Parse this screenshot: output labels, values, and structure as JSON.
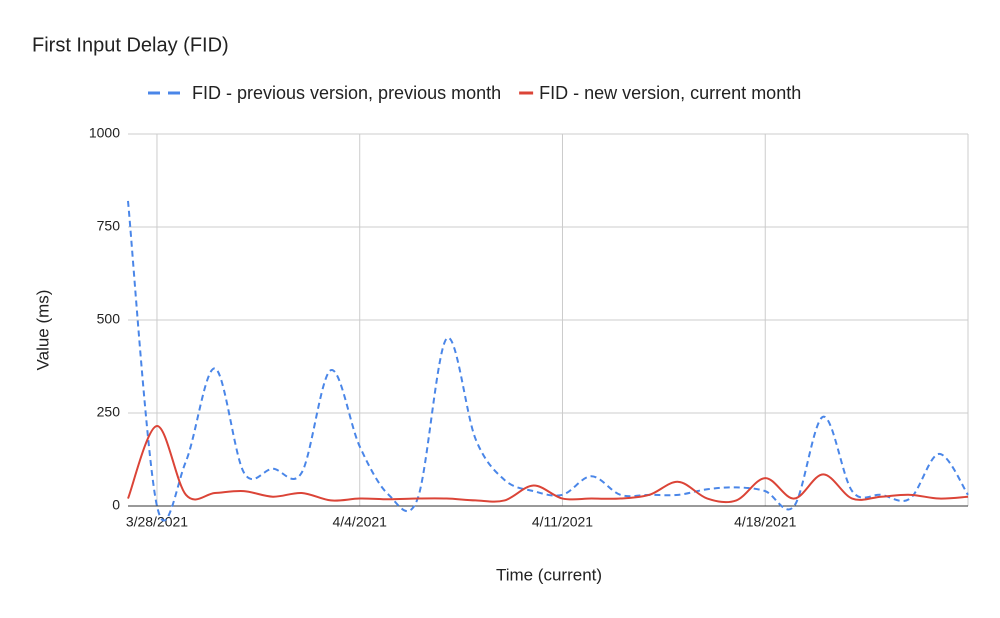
{
  "chart_data": {
    "type": "line",
    "title": "First Input Delay (FID)",
    "x_label": "Time (current)",
    "y_label": "Value (ms)",
    "x": [
      "2021-03-27",
      "2021-03-28",
      "2021-03-29",
      "2021-03-30",
      "2021-03-31",
      "2021-04-01",
      "2021-04-02",
      "2021-04-03",
      "2021-04-04",
      "2021-04-05",
      "2021-04-06",
      "2021-04-07",
      "2021-04-08",
      "2021-04-09",
      "2021-04-10",
      "2021-04-11",
      "2021-04-12",
      "2021-04-13",
      "2021-04-14",
      "2021-04-15",
      "2021-04-16",
      "2021-04-17",
      "2021-04-18",
      "2021-04-19",
      "2021-04-20",
      "2021-04-21",
      "2021-04-22",
      "2021-04-23",
      "2021-04-24",
      "2021-04-25"
    ],
    "series": [
      {
        "name": "FID - previous version, previous month",
        "color": "#4a86e8",
        "dashed": true,
        "values": [
          820,
          0,
          120,
          370,
          90,
          100,
          90,
          365,
          160,
          30,
          20,
          450,
          180,
          70,
          40,
          30,
          80,
          30,
          30,
          30,
          45,
          50,
          40,
          0,
          240,
          40,
          30,
          20,
          140,
          30
        ]
      },
      {
        "name": "FID - new version, current month",
        "color": "#db4437",
        "dashed": false,
        "values": [
          20,
          215,
          30,
          35,
          40,
          25,
          35,
          15,
          20,
          18,
          20,
          20,
          15,
          15,
          55,
          20,
          20,
          20,
          30,
          65,
          20,
          15,
          75,
          20,
          85,
          20,
          25,
          30,
          20,
          25
        ]
      }
    ],
    "xlim": [
      "2021-03-27",
      "2021-04-25"
    ],
    "xticks": [
      {
        "value": "2021-03-28",
        "label": "3/28/2021"
      },
      {
        "value": "2021-04-04",
        "label": "4/4/2021"
      },
      {
        "value": "2021-04-11",
        "label": "4/11/2021"
      },
      {
        "value": "2021-04-18",
        "label": "4/18/2021"
      },
      {
        "value": "2021-04-25",
        "label": ""
      }
    ],
    "ylim": [
      0,
      1000
    ],
    "yticks": [
      0,
      250,
      500,
      750,
      1000
    ],
    "grid": true,
    "legend": "top"
  }
}
